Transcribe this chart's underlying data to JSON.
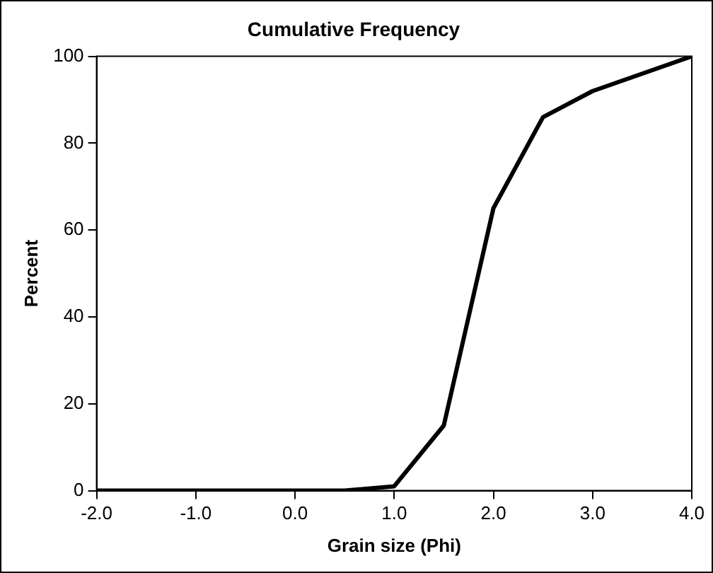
{
  "chart_data": {
    "type": "line",
    "title": "Cumulative Frequency",
    "xlabel": "Grain size (Phi)",
    "ylabel": "Percent",
    "series": [
      {
        "color": "#000000",
        "x": [
          -2,
          0.5,
          1,
          1.5,
          2,
          2.5,
          3,
          4
        ],
        "values": [
          0,
          0,
          1,
          15,
          65,
          86,
          92,
          100
        ]
      }
    ],
    "xlim": [
      -2,
      4
    ],
    "xticks": [
      {
        "value": -2,
        "label": "-2.0"
      },
      {
        "value": -1,
        "label": "-1.0"
      },
      {
        "value": 0,
        "label": "0.0"
      },
      {
        "value": 1,
        "label": "1.0"
      },
      {
        "value": 2,
        "label": "2.0"
      },
      {
        "value": 3,
        "label": "3.0"
      },
      {
        "value": 4,
        "label": "4.0"
      }
    ],
    "ylim": [
      0,
      100
    ],
    "yticks": [
      0,
      20,
      40,
      60,
      80,
      100
    ],
    "grid": false,
    "legend": false,
    "marker": "none",
    "line_style": "solid"
  }
}
